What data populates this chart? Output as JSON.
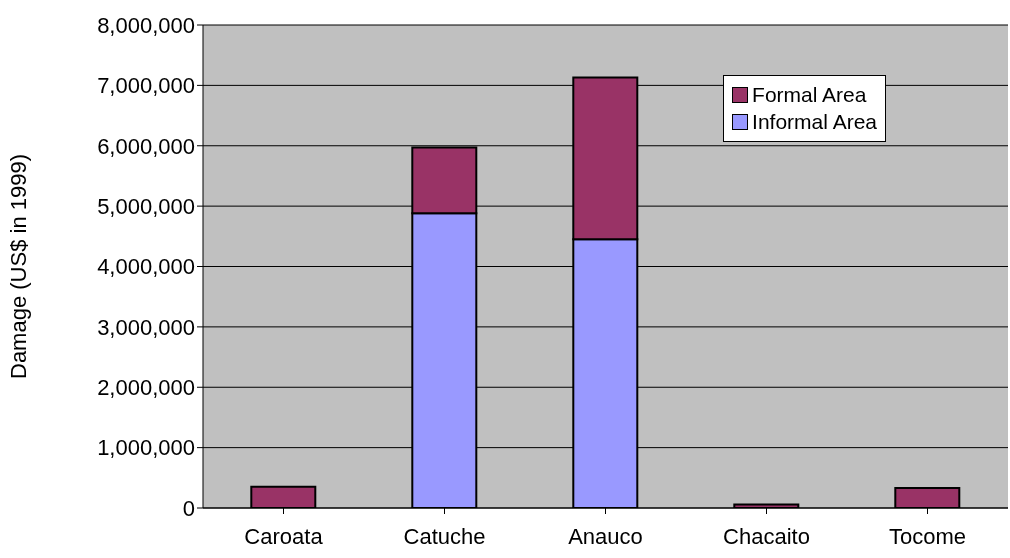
{
  "chart_data": {
    "type": "bar",
    "ylabel": "Damage (US$ in 1999)",
    "categories": [
      "Caroata",
      "Catuche",
      "Anauco",
      "Chacaito",
      "Tocome"
    ],
    "stacked": true,
    "series": [
      {
        "name": "Informal Area",
        "color": "#9999ff",
        "values": [
          0,
          4880000,
          4450000,
          0,
          0
        ]
      },
      {
        "name": "Formal Area",
        "color": "#993366",
        "values": [
          350000,
          1090000,
          2680000,
          60000,
          330000
        ]
      }
    ],
    "ylim": [
      0,
      8000000
    ],
    "yticks": [
      0,
      {
        "value": 1000000,
        "label": "1,000,000"
      },
      {
        "value": 2000000,
        "label": "2,000,000"
      },
      {
        "value": 3000000,
        "label": "3,000,000"
      },
      {
        "value": 4000000,
        "label": "4,000,000"
      },
      {
        "value": 5000000,
        "label": "5,000,000"
      },
      {
        "value": 6000000,
        "label": "6,000,000"
      },
      {
        "value": 7000000,
        "label": "7,000,000"
      },
      {
        "value": 8000000,
        "label": "8,000,000"
      }
    ],
    "grid": "y",
    "legend": "top right"
  }
}
